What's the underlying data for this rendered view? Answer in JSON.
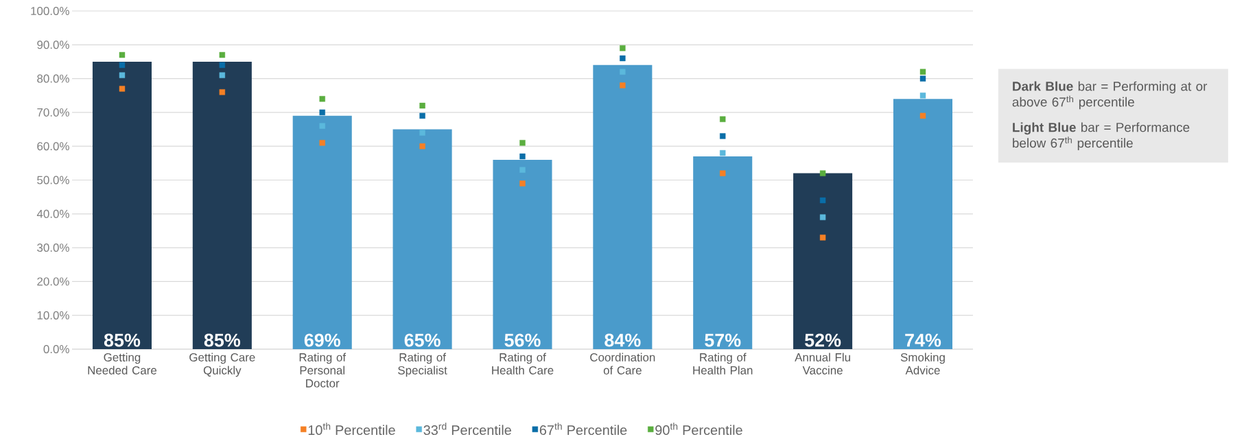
{
  "chart_data": {
    "type": "bar",
    "categories": [
      "Getting Needed Care",
      "Getting Care Quickly",
      "Rating of Personal Doctor",
      "Rating of Specialist",
      "Rating of Health Care",
      "Coordination of Care",
      "Rating of Health Plan",
      "Annual Flu Vaccine",
      "Smoking Advice"
    ],
    "values": [
      85,
      85,
      69,
      65,
      56,
      84,
      57,
      52,
      74
    ],
    "colors": [
      "#213d57",
      "#213d57",
      "#4a9bcb",
      "#4a9bcb",
      "#4a9bcb",
      "#4a9bcb",
      "#4a9bcb",
      "#213d57",
      "#4a9bcb"
    ],
    "value_labels": [
      "85%",
      "85%",
      "69%",
      "65%",
      "56%",
      "84%",
      "57%",
      "52%",
      "74%"
    ],
    "series": [
      {
        "type": "scatter",
        "name": "10$^{th}$ Percentile",
        "color": "#f58025",
        "values": [
          77,
          76,
          61,
          60,
          49,
          78,
          52,
          33,
          69
        ]
      },
      {
        "type": "scatter",
        "name": "33$^{rd}$ Percentile",
        "color": "#5bb8dc",
        "values": [
          81,
          81,
          66,
          64,
          53,
          82,
          58,
          39,
          75
        ]
      },
      {
        "type": "scatter",
        "name": "67$^{th}$ Percentile",
        "color": "#0a6ea8",
        "values": [
          84,
          84,
          70,
          69,
          57,
          86,
          63,
          44,
          80
        ]
      },
      {
        "type": "scatter",
        "name": "90$^{th}$ Percentile",
        "color": "#5aae3f",
        "values": [
          87,
          87,
          74,
          72,
          61,
          89,
          68,
          52,
          82
        ]
      }
    ],
    "ylim": [
      0,
      100
    ],
    "yticks": [
      {
        "value": 0,
        "label": "0.0%"
      },
      {
        "value": 10,
        "label": "10.0%"
      },
      {
        "value": 20,
        "label": "20.0%"
      },
      {
        "value": 30,
        "label": "30.0%"
      },
      {
        "value": 40,
        "label": "40.0%"
      },
      {
        "value": 50,
        "label": "50.0%"
      },
      {
        "value": 60,
        "label": "60.0%"
      },
      {
        "value": 70,
        "label": "70.0%"
      },
      {
        "value": 80,
        "label": "80.0%"
      },
      {
        "value": 90,
        "label": "90.0%"
      },
      {
        "value": 100,
        "label": "100.0%"
      }
    ],
    "grid": "y",
    "marker": "square",
    "legend": "bottom",
    "annotations": [
      "**Dark Blue** bar = Performing at or above 67$^{th}$ percentile",
      "**Light Blue** bar = Performance below 67$^{th}$ percentile"
    ]
  }
}
